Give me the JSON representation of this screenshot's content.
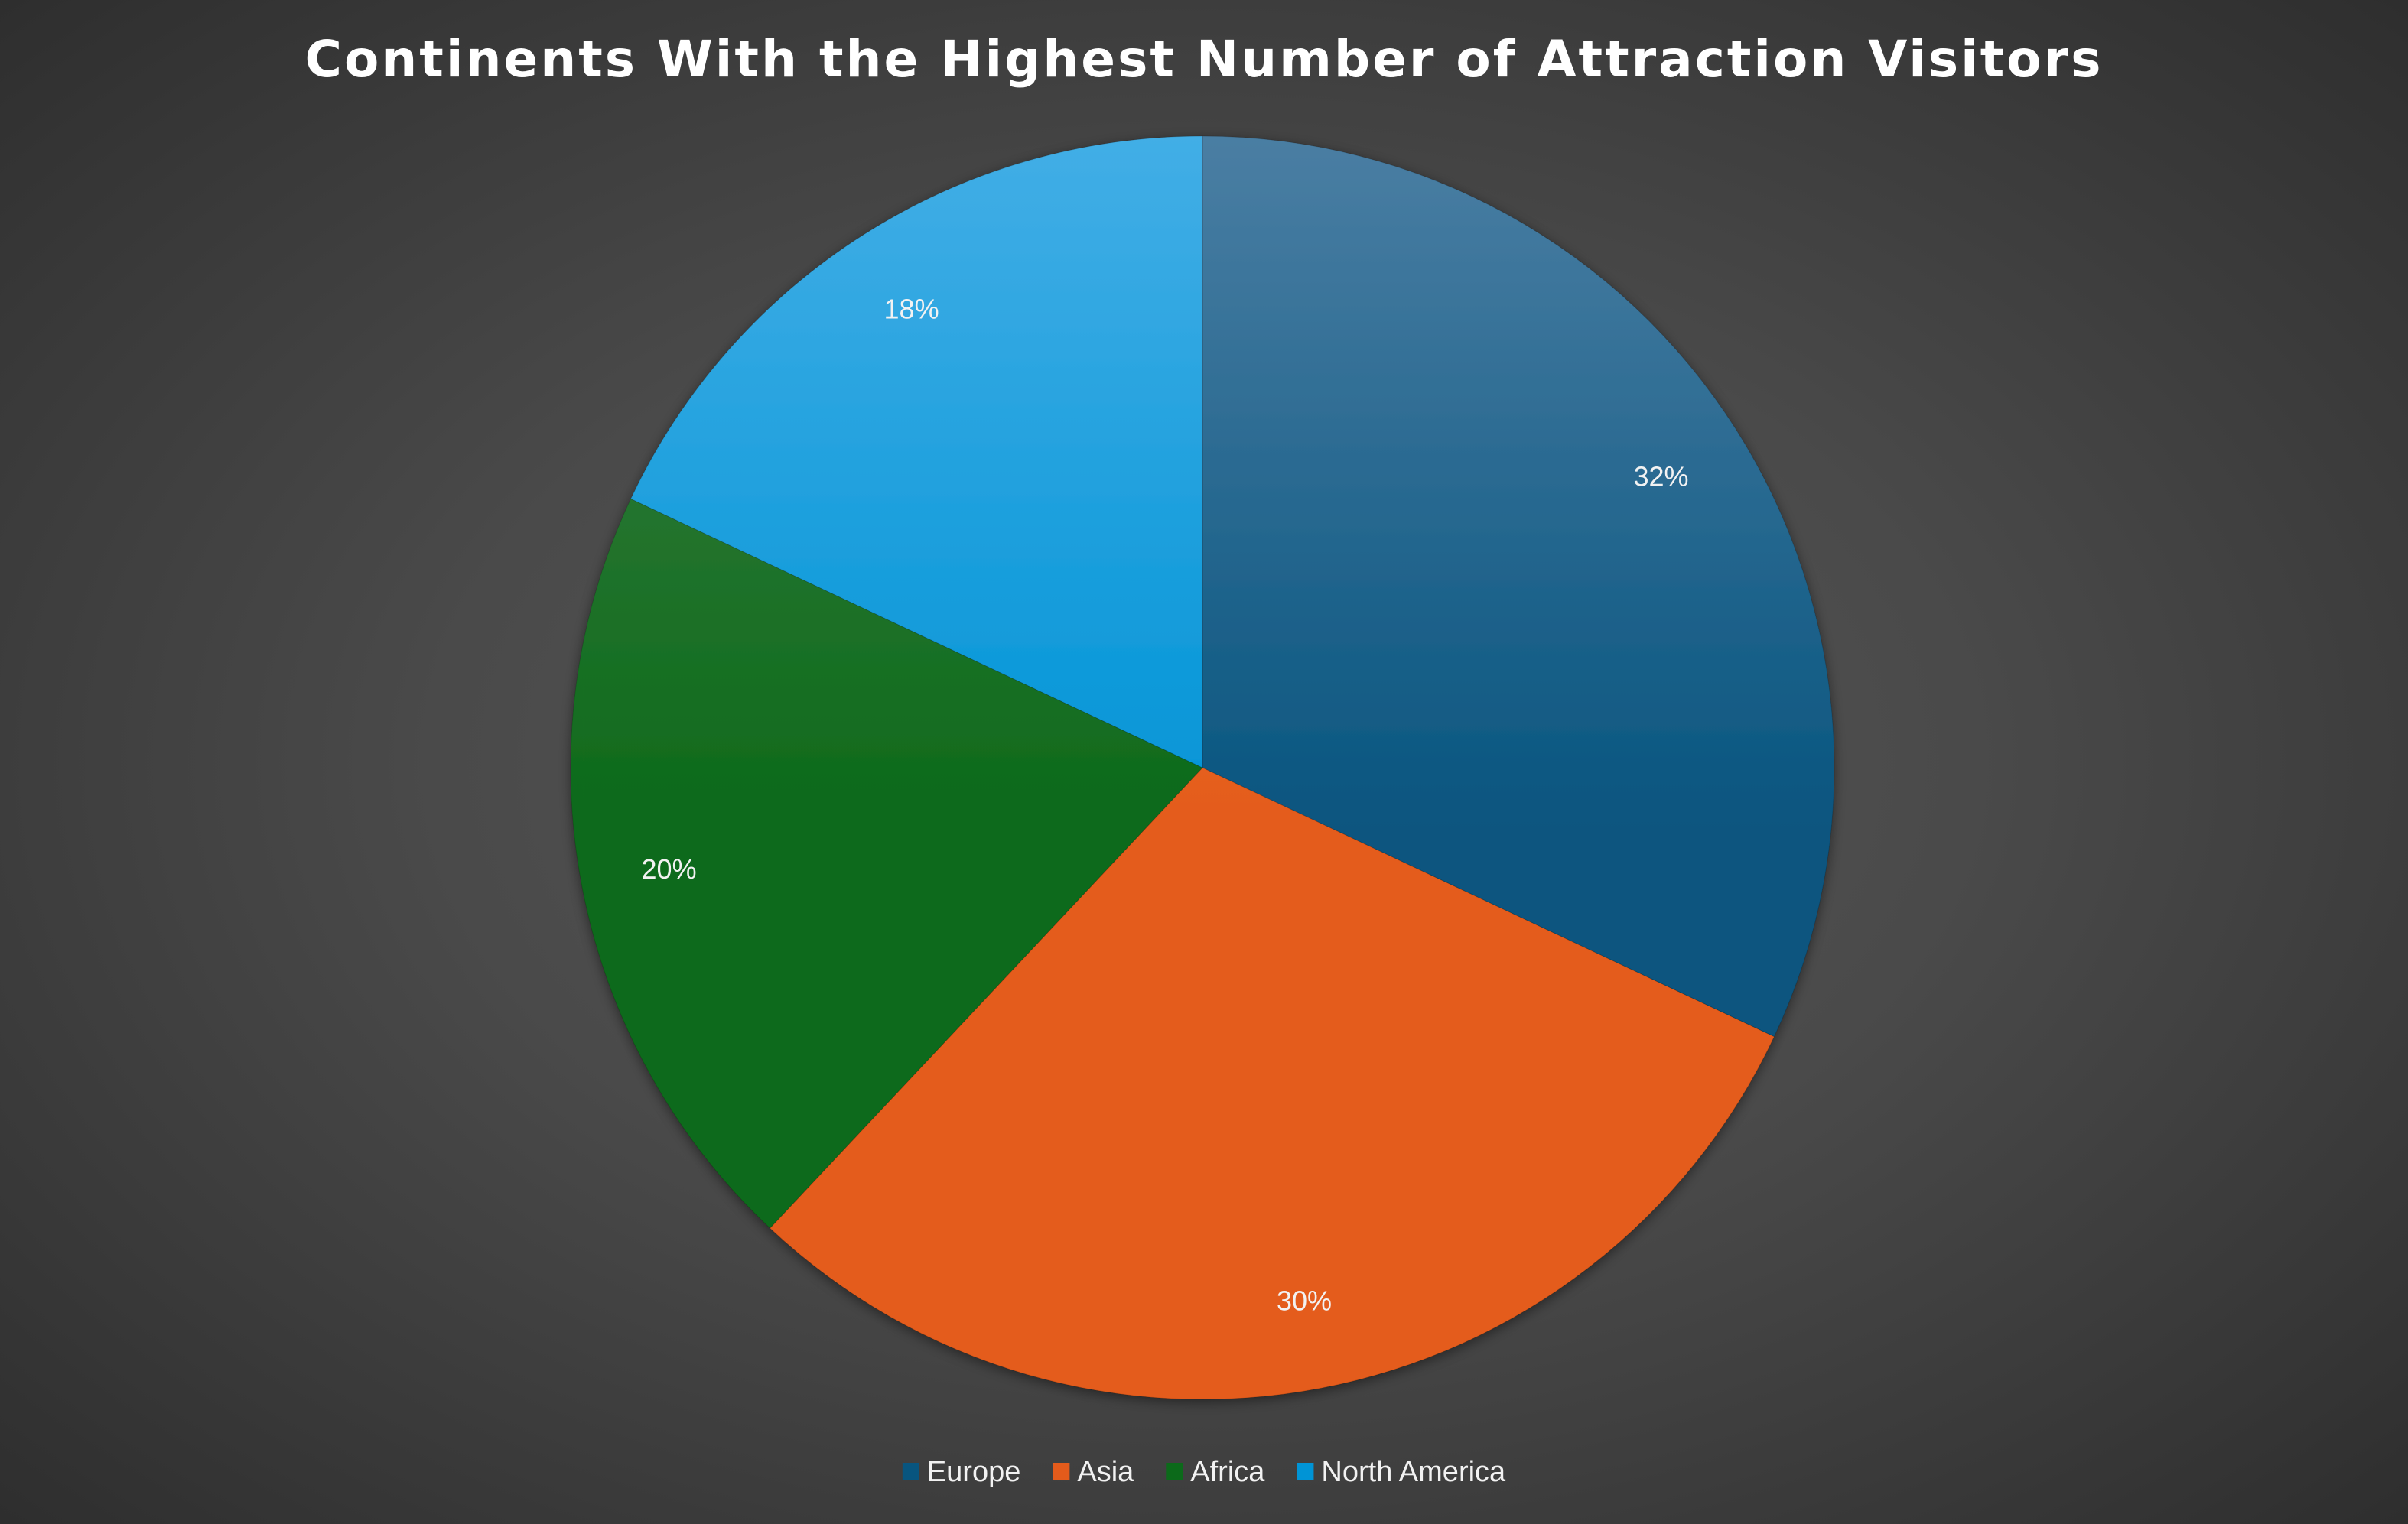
{
  "chart_data": {
    "type": "pie",
    "title": "Continents With the Highest Number of Attraction Visitors",
    "categories": [
      "Europe",
      "Asia",
      "Africa",
      "North America"
    ],
    "values": [
      32,
      30,
      20,
      18
    ],
    "data_labels": [
      "32%",
      "30%",
      "20%",
      "18%"
    ],
    "colors": {
      "Europe": [
        "#4a7ea3",
        "#08557f"
      ],
      "Asia": [
        "#f0834f",
        "#e45b1b"
      ],
      "Africa": [
        "#3f7f45",
        "#0c6a1a"
      ],
      "North America": [
        "#42aee6",
        "#0094d6"
      ]
    },
    "start_angle": "12 o'clock",
    "direction": "clockwise",
    "legend_position": "bottom"
  }
}
